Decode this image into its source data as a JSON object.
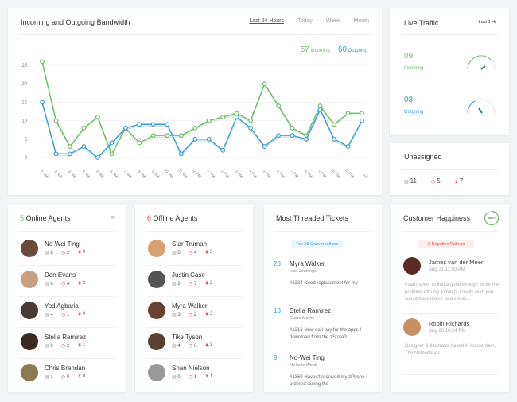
{
  "bandwidth": {
    "title": "Incoming and Outgoing Bandwidth",
    "tabs": [
      "Last 24 Hours",
      "Today",
      "Week",
      "Month"
    ],
    "incoming_total": "57",
    "incoming_label": "Incoming",
    "outgoing_total": "60",
    "outgoing_label": "Outgoing"
  },
  "chart_data": {
    "type": "line",
    "title": "Incoming and Outgoing Bandwidth",
    "x": [
      "1 AM",
      "2 AM",
      "3 AM",
      "4 AM",
      "5 AM",
      "6 AM",
      "7 AM",
      "8 AM",
      "9 AM",
      "10 AM",
      "11 AM",
      "12 PM",
      "1 PM",
      "2 PM",
      "3 PM",
      "4 PM",
      "5 PM",
      "6 PM",
      "7 PM",
      "8 PM",
      "9 PM",
      "10 PM",
      "11 PM",
      "12"
    ],
    "yticks": [
      0,
      5,
      10,
      15,
      20,
      25
    ],
    "ylim": [
      0,
      27
    ],
    "grid": true,
    "series": [
      {
        "name": "Incoming",
        "color": "#6dbb6a",
        "values": [
          26,
          10,
          3,
          8,
          11,
          1,
          8,
          4,
          6,
          6,
          6,
          8,
          10,
          11,
          12,
          10,
          20,
          14,
          8,
          6,
          14,
          9,
          12,
          12
        ]
      },
      {
        "name": "Outgoing",
        "color": "#3a9fd0",
        "values": [
          15,
          1,
          1,
          3,
          0,
          4,
          8,
          9,
          9,
          9,
          1,
          5,
          5,
          2,
          11,
          8,
          3,
          6,
          6,
          5,
          13,
          5,
          3,
          10
        ]
      }
    ]
  },
  "live": {
    "title": "Live Traffic",
    "range": "Last 1 Hr",
    "incoming_value": "09",
    "incoming_label": "Incoming",
    "outgoing_value": "03",
    "outgoing_label": "Outgoing"
  },
  "unassigned": {
    "title": "Unassigned",
    "tickets": "11",
    "overdue": "5",
    "pending": "7"
  },
  "online": {
    "count": "5",
    "title": "Online Agents",
    "agents": [
      {
        "name": "No-Wei Ting",
        "a": "8",
        "b": "2",
        "c": "0",
        "color": "#6b4a3a"
      },
      {
        "name": "Don Evans",
        "a": "6",
        "b": "4",
        "c": "3",
        "color": "#c9a080"
      },
      {
        "name": "Yod Agbaria",
        "a": "4",
        "b": "1",
        "c": "0",
        "color": "#4a3a35"
      },
      {
        "name": "Stella Ramirez",
        "a": "9",
        "b": "2",
        "c": "1",
        "color": "#3a2a25"
      },
      {
        "name": "Chris Brendan",
        "a": "1",
        "b": "0",
        "c": "0",
        "color": "#8a7a50"
      }
    ]
  },
  "offline": {
    "count": "6",
    "title": "Offline Agents",
    "agents": [
      {
        "name": "Star Truman",
        "a": "6",
        "b": "4",
        "c": "2",
        "color": "#d8a070"
      },
      {
        "name": "Justin Case",
        "a": "2",
        "b": "7",
        "c": "2",
        "color": "#555"
      },
      {
        "name": "Myra Walker",
        "a": "3",
        "b": "2",
        "c": "2",
        "color": "#6a4030"
      },
      {
        "name": "Tike Tyson",
        "a": "4",
        "b": "6",
        "c": "3",
        "color": "#5a4030"
      },
      {
        "name": "Shan Nielson",
        "a": "0",
        "b": "1",
        "c": "1",
        "color": "#999"
      }
    ]
  },
  "tickets": {
    "title": "Most Threaded Tickets",
    "pill": "Top 25 Conversations",
    "items": [
      {
        "count": "23",
        "name": "Myra Walker",
        "sub": "Ivan Jennings",
        "msg": "#1334 Need replacement for my"
      },
      {
        "count": "13",
        "name": "Stella Ramirez",
        "sub": "Claire Morris",
        "msg": "#1316 How do I pay for the apps I download from the zStore?"
      },
      {
        "count": "9",
        "name": "No-Wei Ting",
        "sub": "Melanie Ward",
        "msg": "#1369 Haven't received my zPhone I ordered during the"
      }
    ]
  },
  "happiness": {
    "title": "Customer Happiness",
    "percent": "88%",
    "percent_value": 88,
    "pill": "3 Negative Ratings",
    "reviews": [
      {
        "name": "James van der Meer",
        "date": "Aug 21 11:03 AM",
        "text": "I can't seem to find a good enough fix for the problem with my zWatch. I really wish you would have it over and check...",
        "color": "#5a2a25"
      },
      {
        "name": "Robin Richards",
        "date": "Aug 28 10:24 PM",
        "text": "Designer & Illustrator based in Amsterdam, The Netherlands",
        "color": "#c89060"
      }
    ]
  }
}
